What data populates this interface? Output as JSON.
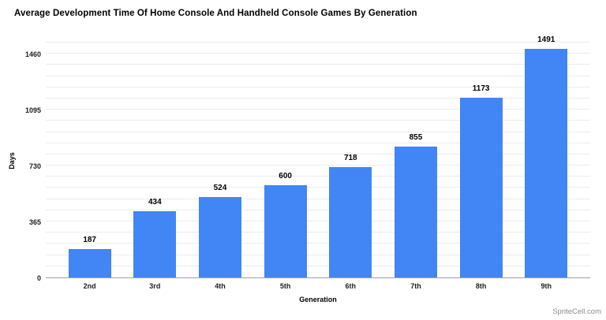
{
  "title": "Average Development Time Of Home Console And Handheld Console Games By Generation",
  "watermark": "SpriteCell.com",
  "colors": {
    "bar": "#4285F4",
    "gridline": "#ececec",
    "axis_line": "#9aa0a6",
    "text": "#000000",
    "watermark_text": "#8c8c8c",
    "background": "#ffffff"
  },
  "chart_data": {
    "type": "bar",
    "title": "Average Development Time Of Home Console And Handheld Console Games By Generation",
    "categories": [
      "2nd",
      "3rd",
      "4th",
      "5th",
      "6th",
      "7th",
      "8th",
      "9th"
    ],
    "values": [
      187,
      434,
      524,
      600,
      718,
      855,
      1173,
      1491
    ],
    "xlabel": "Generation",
    "ylabel": "Days",
    "ylim": [
      0,
      1533
    ],
    "yticks": [
      0,
      365,
      730,
      1095,
      1460
    ],
    "minor_grid_step": 73,
    "grid": true,
    "legend": false,
    "bar_color": "#4285F4"
  }
}
